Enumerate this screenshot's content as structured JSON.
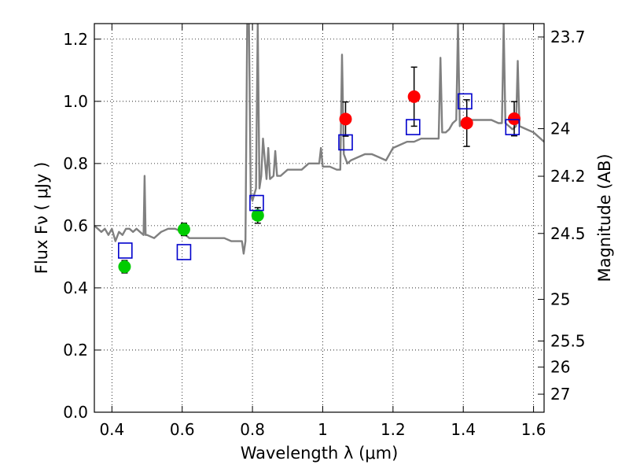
{
  "chart_data": {
    "type": "scatter",
    "xlabel": "Wavelength  λ (μm)",
    "ylabel": "Flux  Fν  ( μJy )",
    "y2label": "Magnitude (AB)",
    "xlim": [
      0.35,
      1.63
    ],
    "ylim": [
      0.0,
      1.25
    ],
    "grid": true,
    "xticks": [
      0.4,
      0.6,
      0.8,
      1.0,
      1.2,
      1.4,
      1.6
    ],
    "xtick_labels": [
      "0.4",
      "0.6",
      "0.8",
      "1",
      "1.2",
      "1.4",
      "1.6"
    ],
    "yticks": [
      0.0,
      0.2,
      0.4,
      0.6,
      0.8,
      1.0,
      1.2
    ],
    "ytick_labels": [
      "0.0",
      "0.2",
      "0.4",
      "0.6",
      "0.8",
      "1.0",
      "1.2"
    ],
    "mag_ticks": [
      {
        "label": "23.7",
        "flux": 1.207
      },
      {
        "label": "24",
        "flux": 0.912
      },
      {
        "label": "24.2",
        "flux": 0.759
      },
      {
        "label": "24.5",
        "flux": 0.575
      },
      {
        "label": "25",
        "flux": 0.363
      },
      {
        "label": "25.5",
        "flux": 0.229
      },
      {
        "label": "26",
        "flux": 0.145
      },
      {
        "label": "27",
        "flux": 0.058
      }
    ],
    "series": [
      {
        "color": "#808080",
        "kind": "model-spectrum",
        "x": [
          0.35,
          0.36,
          0.37,
          0.38,
          0.39,
          0.4,
          0.41,
          0.42,
          0.43,
          0.44,
          0.45,
          0.46,
          0.47,
          0.48,
          0.49,
          0.493,
          0.496,
          0.5,
          0.52,
          0.54,
          0.56,
          0.58,
          0.6,
          0.62,
          0.64,
          0.66,
          0.68,
          0.7,
          0.72,
          0.74,
          0.76,
          0.77,
          0.775,
          0.78,
          0.785,
          0.79,
          0.795,
          0.8,
          0.805,
          0.81,
          0.815,
          0.82,
          0.825,
          0.83,
          0.84,
          0.845,
          0.85,
          0.86,
          0.865,
          0.87,
          0.88,
          0.9,
          0.92,
          0.94,
          0.96,
          0.98,
          0.99,
          0.995,
          1.0,
          1.02,
          1.04,
          1.05,
          1.055,
          1.06,
          1.07,
          1.08,
          1.1,
          1.12,
          1.14,
          1.16,
          1.18,
          1.2,
          1.22,
          1.24,
          1.26,
          1.28,
          1.3,
          1.32,
          1.33,
          1.335,
          1.34,
          1.35,
          1.36,
          1.37,
          1.38,
          1.385,
          1.39,
          1.4,
          1.41,
          1.42,
          1.44,
          1.46,
          1.48,
          1.5,
          1.51,
          1.515,
          1.52,
          1.53,
          1.54,
          1.55,
          1.555,
          1.56,
          1.58,
          1.6,
          1.62,
          1.63
        ],
        "y": [
          0.6,
          0.59,
          0.58,
          0.59,
          0.57,
          0.59,
          0.55,
          0.58,
          0.57,
          0.59,
          0.59,
          0.58,
          0.59,
          0.58,
          0.57,
          0.76,
          0.57,
          0.57,
          0.56,
          0.58,
          0.59,
          0.59,
          0.58,
          0.56,
          0.56,
          0.56,
          0.56,
          0.56,
          0.56,
          0.55,
          0.55,
          0.55,
          0.51,
          0.55,
          1.25,
          1.25,
          0.7,
          0.68,
          0.7,
          0.72,
          1.25,
          0.72,
          0.76,
          0.88,
          0.75,
          0.85,
          0.75,
          0.76,
          0.84,
          0.76,
          0.76,
          0.78,
          0.78,
          0.78,
          0.8,
          0.8,
          0.8,
          0.85,
          0.79,
          0.79,
          0.78,
          0.78,
          1.15,
          0.83,
          0.8,
          0.81,
          0.82,
          0.83,
          0.83,
          0.82,
          0.81,
          0.85,
          0.86,
          0.87,
          0.87,
          0.88,
          0.88,
          0.88,
          0.88,
          1.14,
          0.9,
          0.9,
          0.91,
          0.93,
          0.94,
          1.25,
          0.92,
          0.93,
          0.95,
          0.94,
          0.94,
          0.94,
          0.94,
          0.93,
          0.93,
          1.25,
          0.93,
          0.92,
          0.91,
          0.92,
          1.13,
          0.92,
          0.91,
          0.9,
          0.88,
          0.87
        ]
      },
      {
        "color": "#00cc00",
        "marker": "circle",
        "x": [
          0.436,
          0.605,
          0.815
        ],
        "y": [
          0.468,
          0.588,
          0.633
        ],
        "yerr": [
          0.02,
          0.02,
          0.025
        ]
      },
      {
        "color": "#ff0000",
        "marker": "circle",
        "x": [
          1.065,
          1.26,
          1.41,
          1.545
        ],
        "y": [
          0.943,
          1.015,
          0.93,
          0.944
        ],
        "yerr": [
          0.055,
          0.095,
          0.075,
          0.055
        ]
      },
      {
        "color": "#0000cc",
        "marker": "square",
        "x": [
          0.438,
          0.605,
          0.812,
          1.065,
          1.257,
          1.405,
          1.54
        ],
        "y": [
          0.52,
          0.515,
          0.673,
          0.868,
          0.917,
          1.0,
          0.917
        ]
      }
    ]
  }
}
